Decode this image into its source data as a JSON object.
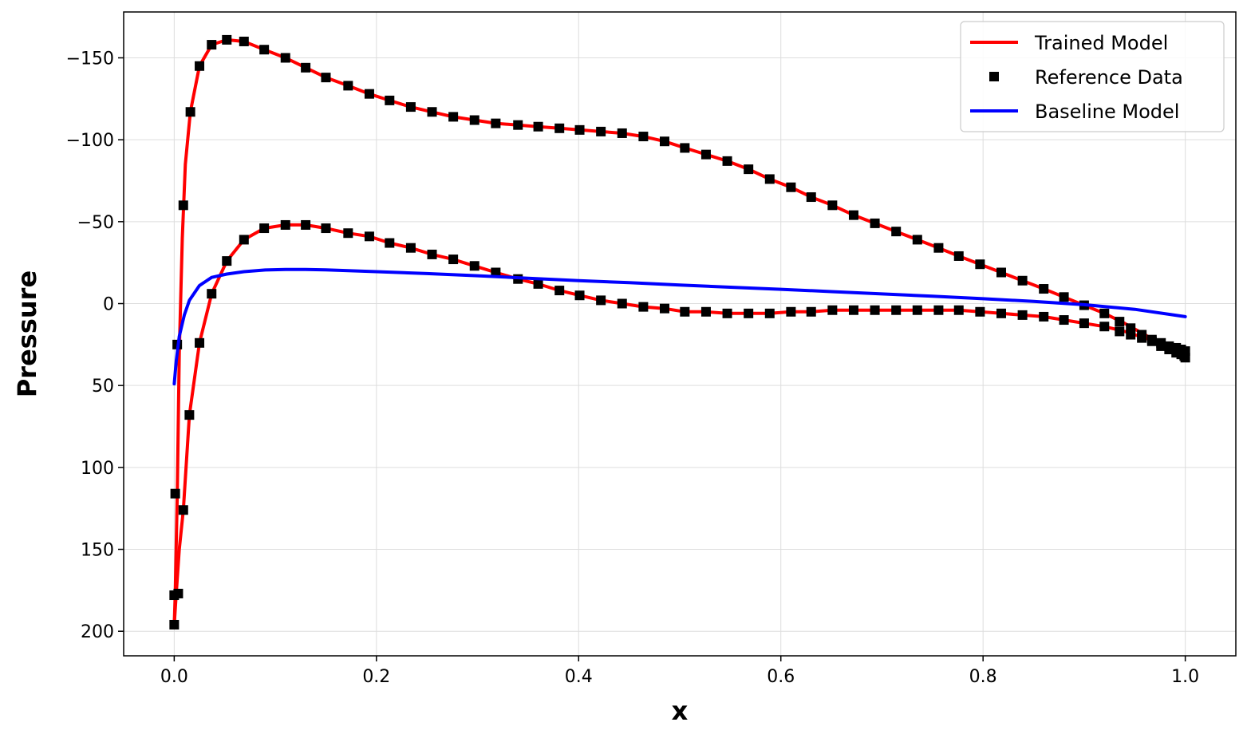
{
  "chart_data": {
    "type": "line",
    "title": "",
    "xlabel": "x",
    "ylabel": "Pressure",
    "xlim": [
      -0.05,
      1.05
    ],
    "ylim": [
      215,
      -178
    ],
    "y_inverted": true,
    "grid": true,
    "legend_position": "top-right",
    "xticks": [
      0.0,
      0.2,
      0.4,
      0.6,
      0.8,
      1.0
    ],
    "xtick_labels": [
      "0.0",
      "0.2",
      "0.4",
      "0.6",
      "0.8",
      "1.0"
    ],
    "yticks": [
      -150,
      -100,
      -50,
      0,
      50,
      100,
      150,
      200
    ],
    "ytick_labels": [
      "−150",
      "−100",
      "−50",
      "0",
      "50",
      "100",
      "150",
      "200"
    ],
    "series": [
      {
        "name": "Trained Model",
        "style": "line",
        "color": "#ff0000",
        "segments": [
          [
            [
              0.0,
              196
            ],
            [
              0.001,
              178
            ],
            [
              0.003,
              116
            ],
            [
              0.005,
              30
            ],
            [
              0.008,
              -40
            ],
            [
              0.011,
              -85
            ],
            [
              0.016,
              -117
            ],
            [
              0.025,
              -145
            ],
            [
              0.037,
              -158
            ],
            [
              0.052,
              -161
            ],
            [
              0.069,
              -160
            ],
            [
              0.089,
              -155
            ],
            [
              0.11,
              -150
            ],
            [
              0.13,
              -144
            ],
            [
              0.15,
              -138
            ],
            [
              0.172,
              -133
            ],
            [
              0.193,
              -128
            ],
            [
              0.213,
              -124
            ],
            [
              0.234,
              -120
            ],
            [
              0.255,
              -117
            ],
            [
              0.276,
              -114
            ],
            [
              0.297,
              -112
            ],
            [
              0.318,
              -110
            ],
            [
              0.34,
              -109
            ],
            [
              0.36,
              -108
            ],
            [
              0.381,
              -107
            ],
            [
              0.401,
              -106
            ],
            [
              0.422,
              -105
            ],
            [
              0.443,
              -104
            ],
            [
              0.464,
              -102
            ],
            [
              0.485,
              -99
            ],
            [
              0.505,
              -95
            ],
            [
              0.526,
              -91
            ],
            [
              0.547,
              -87
            ],
            [
              0.568,
              -82
            ],
            [
              0.589,
              -76
            ],
            [
              0.61,
              -71
            ],
            [
              0.63,
              -65
            ],
            [
              0.651,
              -60
            ],
            [
              0.672,
              -54
            ],
            [
              0.693,
              -49
            ],
            [
              0.714,
              -44
            ],
            [
              0.735,
              -39
            ],
            [
              0.756,
              -34
            ],
            [
              0.776,
              -29
            ],
            [
              0.797,
              -24
            ],
            [
              0.818,
              -19
            ],
            [
              0.839,
              -14
            ],
            [
              0.86,
              -9
            ],
            [
              0.88,
              -4
            ],
            [
              0.9,
              1
            ],
            [
              0.92,
              6
            ],
            [
              0.94,
              12
            ],
            [
              0.96,
              19
            ],
            [
              0.98,
              26
            ],
            [
              1.0,
              32
            ]
          ],
          [
            [
              0.0,
              196
            ],
            [
              0.002,
              177
            ],
            [
              0.005,
              150
            ],
            [
              0.009,
              126
            ],
            [
              0.015,
              68
            ],
            [
              0.025,
              24
            ],
            [
              0.037,
              -6
            ],
            [
              0.052,
              -26
            ],
            [
              0.069,
              -39
            ],
            [
              0.089,
              -46
            ],
            [
              0.11,
              -48
            ],
            [
              0.13,
              -48
            ],
            [
              0.15,
              -46
            ],
            [
              0.172,
              -43
            ],
            [
              0.193,
              -41
            ],
            [
              0.213,
              -37
            ],
            [
              0.234,
              -34
            ],
            [
              0.255,
              -30
            ],
            [
              0.276,
              -27
            ],
            [
              0.297,
              -23
            ],
            [
              0.318,
              -19
            ],
            [
              0.34,
              -15
            ],
            [
              0.36,
              -12
            ],
            [
              0.381,
              -8
            ],
            [
              0.401,
              -5
            ],
            [
              0.422,
              -2
            ],
            [
              0.443,
              0
            ],
            [
              0.464,
              2
            ],
            [
              0.485,
              3
            ],
            [
              0.505,
              5
            ],
            [
              0.526,
              5
            ],
            [
              0.547,
              6
            ],
            [
              0.568,
              6
            ],
            [
              0.589,
              6
            ],
            [
              0.61,
              5
            ],
            [
              0.63,
              5
            ],
            [
              0.651,
              4
            ],
            [
              0.672,
              4
            ],
            [
              0.693,
              4
            ],
            [
              0.714,
              4
            ],
            [
              0.735,
              4
            ],
            [
              0.756,
              4
            ],
            [
              0.776,
              4
            ],
            [
              0.797,
              5
            ],
            [
              0.818,
              6
            ],
            [
              0.839,
              7
            ],
            [
              0.86,
              8
            ],
            [
              0.88,
              10
            ],
            [
              0.9,
              12
            ],
            [
              0.92,
              14
            ],
            [
              0.94,
              17
            ],
            [
              0.96,
              21
            ],
            [
              0.98,
              25
            ],
            [
              1.0,
              29
            ]
          ]
        ]
      },
      {
        "name": "Reference Data",
        "style": "markers",
        "color": "#000000",
        "points": [
          [
            0.0,
            196
          ],
          [
            0.0,
            178
          ],
          [
            0.001,
            116
          ],
          [
            0.003,
            25
          ],
          [
            0.009,
            -60
          ],
          [
            0.016,
            -117
          ],
          [
            0.025,
            -145
          ],
          [
            0.037,
            -158
          ],
          [
            0.052,
            -161
          ],
          [
            0.069,
            -160
          ],
          [
            0.089,
            -155
          ],
          [
            0.11,
            -150
          ],
          [
            0.13,
            -144
          ],
          [
            0.15,
            -138
          ],
          [
            0.172,
            -133
          ],
          [
            0.193,
            -128
          ],
          [
            0.213,
            -124
          ],
          [
            0.234,
            -120
          ],
          [
            0.255,
            -117
          ],
          [
            0.276,
            -114
          ],
          [
            0.297,
            -112
          ],
          [
            0.318,
            -110
          ],
          [
            0.34,
            -109
          ],
          [
            0.36,
            -108
          ],
          [
            0.381,
            -107
          ],
          [
            0.401,
            -106
          ],
          [
            0.422,
            -105
          ],
          [
            0.443,
            -104
          ],
          [
            0.464,
            -102
          ],
          [
            0.485,
            -99
          ],
          [
            0.505,
            -95
          ],
          [
            0.526,
            -91
          ],
          [
            0.547,
            -87
          ],
          [
            0.568,
            -82
          ],
          [
            0.589,
            -76
          ],
          [
            0.61,
            -71
          ],
          [
            0.63,
            -65
          ],
          [
            0.651,
            -60
          ],
          [
            0.672,
            -54
          ],
          [
            0.693,
            -49
          ],
          [
            0.714,
            -44
          ],
          [
            0.735,
            -39
          ],
          [
            0.756,
            -34
          ],
          [
            0.776,
            -29
          ],
          [
            0.797,
            -24
          ],
          [
            0.818,
            -19
          ],
          [
            0.839,
            -14
          ],
          [
            0.86,
            -9
          ],
          [
            0.88,
            -4
          ],
          [
            0.9,
            1
          ],
          [
            0.92,
            6
          ],
          [
            0.935,
            11
          ],
          [
            0.946,
            15
          ],
          [
            0.957,
            19
          ],
          [
            0.967,
            22
          ],
          [
            0.976,
            26
          ],
          [
            0.984,
            28
          ],
          [
            0.991,
            30
          ],
          [
            0.996,
            31
          ],
          [
            0.999,
            32
          ],
          [
            1.0,
            33
          ],
          [
            0.004,
            177
          ],
          [
            0.009,
            126
          ],
          [
            0.015,
            68
          ],
          [
            0.025,
            24
          ],
          [
            0.037,
            -6
          ],
          [
            0.052,
            -26
          ],
          [
            0.069,
            -39
          ],
          [
            0.089,
            -46
          ],
          [
            0.11,
            -48
          ],
          [
            0.13,
            -48
          ],
          [
            0.15,
            -46
          ],
          [
            0.172,
            -43
          ],
          [
            0.193,
            -41
          ],
          [
            0.213,
            -37
          ],
          [
            0.234,
            -34
          ],
          [
            0.255,
            -30
          ],
          [
            0.276,
            -27
          ],
          [
            0.297,
            -23
          ],
          [
            0.318,
            -19
          ],
          [
            0.34,
            -15
          ],
          [
            0.36,
            -12
          ],
          [
            0.381,
            -8
          ],
          [
            0.401,
            -5
          ],
          [
            0.422,
            -2
          ],
          [
            0.443,
            0
          ],
          [
            0.464,
            2
          ],
          [
            0.485,
            3
          ],
          [
            0.505,
            5
          ],
          [
            0.526,
            5
          ],
          [
            0.547,
            6
          ],
          [
            0.568,
            6
          ],
          [
            0.589,
            6
          ],
          [
            0.61,
            5
          ],
          [
            0.63,
            5
          ],
          [
            0.651,
            4
          ],
          [
            0.672,
            4
          ],
          [
            0.693,
            4
          ],
          [
            0.714,
            4
          ],
          [
            0.735,
            4
          ],
          [
            0.756,
            4
          ],
          [
            0.776,
            4
          ],
          [
            0.797,
            5
          ],
          [
            0.818,
            6
          ],
          [
            0.839,
            7
          ],
          [
            0.86,
            8
          ],
          [
            0.88,
            10
          ],
          [
            0.9,
            12
          ],
          [
            0.92,
            14
          ],
          [
            0.935,
            17
          ],
          [
            0.946,
            19
          ],
          [
            0.957,
            21
          ],
          [
            0.967,
            23
          ],
          [
            0.976,
            24
          ],
          [
            0.984,
            26
          ],
          [
            0.991,
            27
          ],
          [
            0.996,
            28
          ],
          [
            1.0,
            29
          ]
        ]
      },
      {
        "name": "Baseline Model",
        "style": "line",
        "color": "#0000ff",
        "points": [
          [
            0.0,
            49
          ],
          [
            0.002,
            35
          ],
          [
            0.005,
            20
          ],
          [
            0.01,
            7
          ],
          [
            0.015,
            -2
          ],
          [
            0.025,
            -11
          ],
          [
            0.037,
            -16
          ],
          [
            0.052,
            -18
          ],
          [
            0.069,
            -19.5
          ],
          [
            0.09,
            -20.5
          ],
          [
            0.11,
            -20.8
          ],
          [
            0.13,
            -20.8
          ],
          [
            0.15,
            -20.6
          ],
          [
            0.2,
            -19.5
          ],
          [
            0.25,
            -18.3
          ],
          [
            0.3,
            -17
          ],
          [
            0.35,
            -15.5
          ],
          [
            0.4,
            -14
          ],
          [
            0.45,
            -12.8
          ],
          [
            0.5,
            -11.3
          ],
          [
            0.55,
            -10
          ],
          [
            0.6,
            -8.7
          ],
          [
            0.65,
            -7.3
          ],
          [
            0.7,
            -5.9
          ],
          [
            0.75,
            -4.5
          ],
          [
            0.8,
            -3
          ],
          [
            0.85,
            -1.3
          ],
          [
            0.9,
            0.7
          ],
          [
            0.95,
            3.5
          ],
          [
            1.0,
            8
          ]
        ]
      }
    ]
  }
}
